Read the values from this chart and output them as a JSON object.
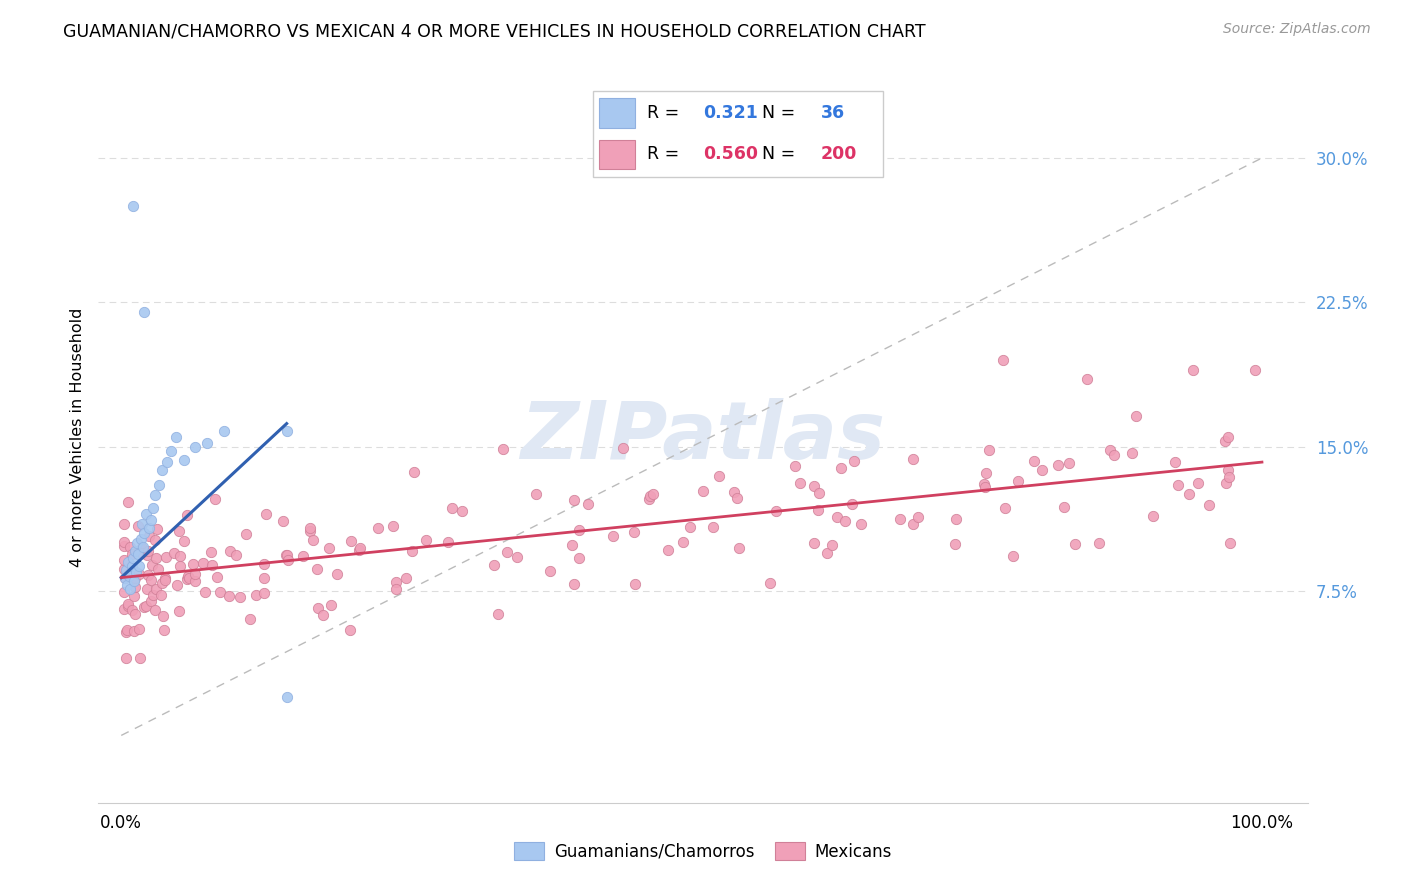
{
  "title": "GUAMANIAN/CHAMORRO VS MEXICAN 4 OR MORE VEHICLES IN HOUSEHOLD CORRELATION CHART",
  "source": "Source: ZipAtlas.com",
  "ylabel": "4 or more Vehicles in Household",
  "legend_blue_r": "0.321",
  "legend_blue_n": "36",
  "legend_pink_r": "0.560",
  "legend_pink_n": "200",
  "blue_scatter_color": "#A8C8F0",
  "blue_edge_color": "#90B0E0",
  "pink_scatter_color": "#F0A0B8",
  "pink_edge_color": "#D08098",
  "blue_line_color": "#3060B0",
  "pink_line_color": "#D04060",
  "dash_line_color": "#BBBBBB",
  "watermark_color": "#E0E8F4",
  "ytick_color": "#5599DD",
  "xlim": [
    -0.02,
    1.04
  ],
  "ylim": [
    -0.035,
    0.345
  ],
  "yticks": [
    0.075,
    0.15,
    0.225,
    0.3
  ],
  "ytick_labels": [
    "7.5%",
    "15.0%",
    "22.5%",
    "30.0%"
  ],
  "grid_color": "#DDDDDD",
  "blue_line_x": [
    0.0,
    0.145
  ],
  "blue_line_y": [
    0.082,
    0.162
  ],
  "pink_line_x": [
    0.0,
    1.0
  ],
  "pink_line_y": [
    0.082,
    0.142
  ]
}
